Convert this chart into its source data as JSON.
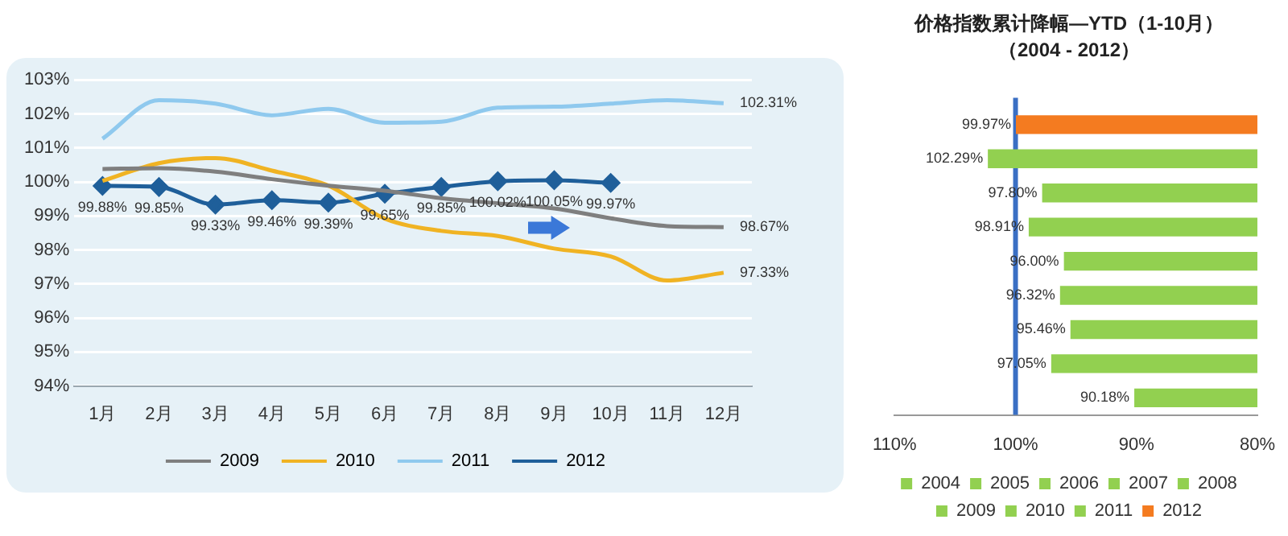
{
  "chart_data": [
    {
      "type": "line",
      "categories": [
        "1月",
        "2月",
        "3月",
        "4月",
        "5月",
        "6月",
        "7月",
        "8月",
        "9月",
        "10月",
        "11月",
        "12月"
      ],
      "series": [
        {
          "name": "2009",
          "color": "#7f7f7f",
          "marker": "none",
          "values": [
            100.38,
            100.4,
            100.3,
            100.08,
            99.89,
            99.74,
            99.52,
            99.37,
            99.22,
            98.93,
            98.7,
            98.67
          ],
          "value_labels": [
            null,
            null,
            null,
            null,
            null,
            null,
            null,
            null,
            null,
            null,
            null,
            "98.67%"
          ]
        },
        {
          "name": "2010",
          "color": "#f0b323",
          "marker": "none",
          "values": [
            100.03,
            100.55,
            100.7,
            100.33,
            99.89,
            98.92,
            98.56,
            98.41,
            98.04,
            97.81,
            97.1,
            97.33
          ],
          "value_labels": [
            null,
            null,
            null,
            null,
            null,
            null,
            null,
            null,
            null,
            null,
            null,
            "97.33%"
          ]
        },
        {
          "name": "2011",
          "color": "#8fc9ee",
          "marker": "none",
          "values": [
            101.27,
            102.4,
            102.3,
            101.96,
            102.15,
            101.74,
            101.77,
            102.18,
            102.21,
            102.3,
            102.4,
            102.31
          ],
          "value_labels": [
            null,
            null,
            null,
            null,
            null,
            null,
            null,
            null,
            null,
            null,
            null,
            "102.31%"
          ]
        },
        {
          "name": "2012",
          "color": "#1f5f9a",
          "marker": "diamond",
          "values": [
            99.88,
            99.85,
            99.33,
            99.46,
            99.39,
            99.65,
            99.85,
            100.02,
            100.05,
            99.97,
            null,
            null
          ],
          "value_labels": [
            "99.88%",
            "99.85%",
            "99.33%",
            "99.46%",
            "99.39%",
            "99.65%",
            "99.85%",
            "100.02%",
            "100.05%",
            "99.97%",
            null,
            null
          ]
        }
      ],
      "ylim": [
        94,
        103
      ],
      "yticks": [
        {
          "value": 94,
          "label": "94%"
        },
        {
          "value": 95,
          "label": "95%"
        },
        {
          "value": 96,
          "label": "96%"
        },
        {
          "value": 97,
          "label": "97%"
        },
        {
          "value": 98,
          "label": "98%"
        },
        {
          "value": 99,
          "label": "99%"
        },
        {
          "value": 100,
          "label": "100%"
        },
        {
          "value": 101,
          "label": "101%"
        },
        {
          "value": 102,
          "label": "102%"
        },
        {
          "value": 103,
          "label": "103%"
        }
      ],
      "grid": "y",
      "legend": "bottom"
    },
    {
      "type": "bar",
      "orientation": "horizontal",
      "title": "价格指数累计降幅—YTD（1-10月）",
      "subtitle": "（2004 - 2012）",
      "categories": [
        null,
        null,
        null,
        null,
        null,
        null,
        null,
        null,
        null
      ],
      "series": [
        {
          "name": "2004",
          "color": "#92d050",
          "values": [
            null,
            null,
            null,
            null,
            null,
            null,
            null,
            null,
            90.18
          ]
        },
        {
          "name": "2005",
          "color": "#92d050",
          "values": [
            null,
            null,
            null,
            null,
            null,
            null,
            null,
            97.05,
            null
          ]
        },
        {
          "name": "2006",
          "color": "#92d050",
          "values": [
            null,
            null,
            null,
            null,
            null,
            null,
            95.46,
            null,
            null
          ]
        },
        {
          "name": "2007",
          "color": "#92d050",
          "values": [
            null,
            null,
            null,
            null,
            null,
            96.32,
            null,
            null,
            null
          ]
        },
        {
          "name": "2008",
          "color": "#92d050",
          "values": [
            null,
            null,
            null,
            null,
            96.0,
            null,
            null,
            null,
            null
          ]
        },
        {
          "name": "2009",
          "color": "#92d050",
          "values": [
            null,
            null,
            null,
            98.91,
            null,
            null,
            null,
            null,
            null
          ]
        },
        {
          "name": "2010",
          "color": "#92d050",
          "values": [
            null,
            null,
            97.8,
            null,
            null,
            null,
            null,
            null,
            null
          ]
        },
        {
          "name": "2011",
          "color": "#92d050",
          "values": [
            null,
            102.29,
            null,
            null,
            null,
            null,
            null,
            null,
            null
          ]
        },
        {
          "name": "2012",
          "color": "#f47b20",
          "values": [
            99.97,
            null,
            null,
            null,
            null,
            null,
            null,
            null,
            null
          ]
        }
      ],
      "value_labels": [
        "99.97%",
        "102.29%",
        "97.80%",
        "98.91%",
        "96.00%",
        "96.32%",
        "95.46%",
        "97.05%",
        "90.18%"
      ],
      "xlim": [
        110,
        80
      ],
      "xticks": [
        {
          "value": 110,
          "label": "110%"
        },
        {
          "value": 100,
          "label": "100%"
        },
        {
          "value": 90,
          "label": "90%"
        },
        {
          "value": 80,
          "label": "80%"
        }
      ],
      "ref_lines": [
        {
          "axis": "x",
          "value": 100,
          "color": "#3a6fc4"
        }
      ],
      "grid": false,
      "legend": "bottom"
    }
  ]
}
